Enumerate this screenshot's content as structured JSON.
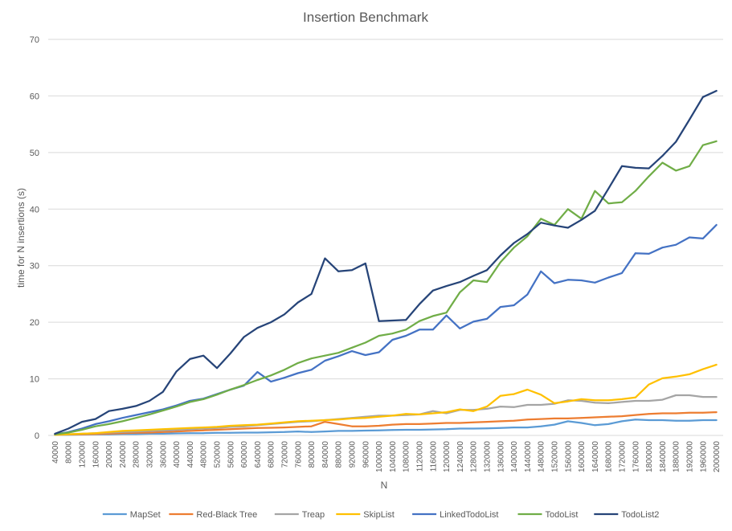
{
  "chart_data": {
    "type": "line",
    "title": "Insertion Benchmark",
    "xlabel": "N",
    "ylabel": "time for N insertions (s)",
    "ylim": [
      0,
      70
    ],
    "yticks": [
      0,
      10,
      20,
      30,
      40,
      50,
      60,
      70
    ],
    "grid": true,
    "legend_position": "bottom",
    "categories": [
      "40000",
      "80000",
      "120000",
      "160000",
      "200000",
      "240000",
      "280000",
      "320000",
      "360000",
      "400000",
      "440000",
      "480000",
      "520000",
      "560000",
      "600000",
      "640000",
      "680000",
      "720000",
      "760000",
      "800000",
      "840000",
      "880000",
      "920000",
      "960000",
      "1000000",
      "1040000",
      "1080000",
      "1120000",
      "1160000",
      "1200000",
      "1240000",
      "1280000",
      "1320000",
      "1360000",
      "1400000",
      "1440000",
      "1480000",
      "1520000",
      "1560000",
      "1600000",
      "1640000",
      "1680000",
      "1720000",
      "1760000",
      "1800000",
      "1840000",
      "1880000",
      "1920000",
      "1960000",
      "2000000"
    ],
    "series": [
      {
        "name": "MapSet",
        "color": "#5b9bd5",
        "values": [
          0.1,
          0.1,
          0.15,
          0.2,
          0.2,
          0.25,
          0.25,
          0.3,
          0.3,
          0.35,
          0.4,
          0.4,
          0.45,
          0.45,
          0.5,
          0.5,
          0.55,
          0.6,
          0.7,
          0.6,
          0.7,
          0.8,
          0.8,
          0.85,
          0.9,
          0.95,
          1.0,
          1.0,
          1.05,
          1.1,
          1.2,
          1.2,
          1.25,
          1.3,
          1.4,
          1.4,
          1.6,
          1.9,
          2.5,
          2.2,
          1.8,
          2.0,
          2.5,
          2.8,
          2.7,
          2.7,
          2.6,
          2.6,
          2.7,
          2.7
        ]
      },
      {
        "name": "Red-Black Tree",
        "color": "#ed7d31",
        "values": [
          0.1,
          0.15,
          0.2,
          0.25,
          0.3,
          0.4,
          0.45,
          0.5,
          0.6,
          0.7,
          0.8,
          0.9,
          1.0,
          1.1,
          1.2,
          1.3,
          1.35,
          1.4,
          1.5,
          1.6,
          2.4,
          2.0,
          1.6,
          1.6,
          1.7,
          1.9,
          2.0,
          2.0,
          2.1,
          2.2,
          2.2,
          2.3,
          2.4,
          2.5,
          2.6,
          2.8,
          2.9,
          3.0,
          3.0,
          3.1,
          3.2,
          3.3,
          3.4,
          3.6,
          3.8,
          3.9,
          3.9,
          4.0,
          4.0,
          4.1
        ]
      },
      {
        "name": "Treap",
        "color": "#a5a5a5",
        "values": [
          0.1,
          0.2,
          0.3,
          0.4,
          0.5,
          0.6,
          0.7,
          0.8,
          0.9,
          1.0,
          1.1,
          1.2,
          1.3,
          1.5,
          1.6,
          1.8,
          2.0,
          2.2,
          2.4,
          2.5,
          2.7,
          2.9,
          3.1,
          3.3,
          3.5,
          3.5,
          3.6,
          3.7,
          4.3,
          3.9,
          4.5,
          4.5,
          4.7,
          5.1,
          5.0,
          5.4,
          5.4,
          5.6,
          6.2,
          6.1,
          5.8,
          5.7,
          5.9,
          6.1,
          6.1,
          6.3,
          7.1,
          7.1,
          6.8,
          6.8
        ]
      },
      {
        "name": "SkipList",
        "color": "#ffc000",
        "values": [
          0.1,
          0.2,
          0.3,
          0.4,
          0.6,
          0.8,
          0.9,
          1.0,
          1.1,
          1.2,
          1.3,
          1.4,
          1.5,
          1.7,
          1.8,
          1.9,
          2.1,
          2.3,
          2.5,
          2.6,
          2.7,
          2.8,
          3.0,
          3.1,
          3.3,
          3.5,
          3.8,
          3.7,
          3.9,
          4.1,
          4.6,
          4.3,
          5.1,
          7.0,
          7.3,
          8.1,
          7.2,
          5.7,
          6.0,
          6.4,
          6.2,
          6.2,
          6.4,
          6.7,
          9.0,
          10.1,
          10.4,
          10.8,
          11.7,
          12.5
        ]
      },
      {
        "name": "LinkedTodoList",
        "color": "#4472c4",
        "values": [
          0.2,
          0.6,
          1.2,
          2.0,
          2.5,
          3.1,
          3.6,
          4.1,
          4.6,
          5.3,
          6.1,
          6.5,
          7.3,
          8.1,
          8.8,
          11.2,
          9.5,
          10.2,
          11.0,
          11.6,
          13.2,
          14.0,
          14.9,
          14.2,
          14.7,
          16.9,
          17.6,
          18.7,
          18.7,
          21.2,
          18.9,
          20.1,
          20.6,
          22.7,
          23.0,
          24.9,
          29.0,
          26.9,
          27.5,
          27.4,
          27.0,
          27.9,
          28.7,
          32.2,
          32.1,
          33.2,
          33.7,
          35.0,
          34.8,
          37.2
        ]
      },
      {
        "name": "TodoList",
        "color": "#70ad47",
        "values": [
          0.2,
          0.5,
          1.0,
          1.6,
          2.0,
          2.5,
          3.1,
          3.7,
          4.4,
          5.1,
          5.9,
          6.4,
          7.2,
          8.1,
          8.9,
          9.8,
          10.6,
          11.6,
          12.8,
          13.6,
          14.1,
          14.6,
          15.5,
          16.4,
          17.6,
          18.0,
          18.7,
          20.2,
          21.1,
          21.7,
          25.3,
          27.4,
          27.1,
          30.6,
          33.2,
          35.2,
          38.3,
          37.2,
          40.0,
          38.3,
          43.2,
          41.0,
          41.2,
          43.2,
          45.8,
          48.2,
          46.8,
          47.6,
          51.3,
          52.0
        ]
      },
      {
        "name": "TodoList2",
        "color": "#264478",
        "values": [
          0.3,
          1.2,
          2.4,
          2.9,
          4.3,
          4.7,
          5.2,
          6.1,
          7.7,
          11.3,
          13.5,
          14.1,
          11.9,
          14.5,
          17.4,
          19.0,
          20.0,
          21.4,
          23.5,
          25.0,
          31.3,
          29.0,
          29.2,
          30.4,
          20.2,
          20.3,
          20.4,
          23.2,
          25.6,
          26.4,
          27.1,
          28.2,
          29.2,
          31.8,
          34.0,
          35.6,
          37.6,
          37.1,
          36.7,
          38.1,
          39.7,
          43.6,
          47.6,
          47.3,
          47.2,
          49.4,
          51.9,
          55.8,
          59.8,
          60.9
        ]
      }
    ]
  }
}
